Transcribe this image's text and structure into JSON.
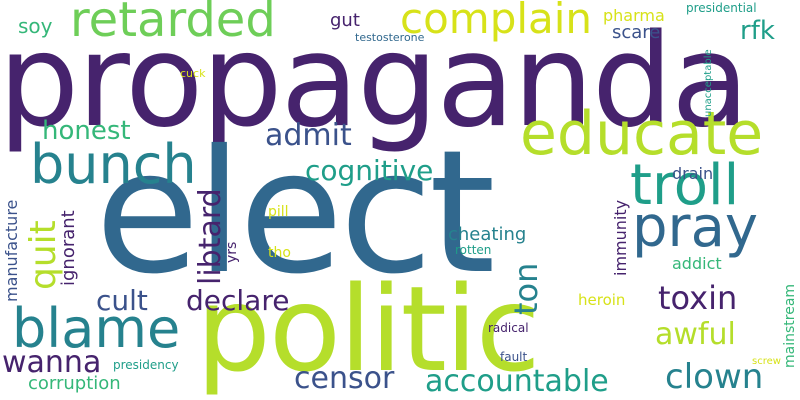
{
  "words": {
    "propaganda": "propaganda",
    "elect": "elect",
    "politic": "politic",
    "retarded": "retarded",
    "complain": "complain",
    "educate": "educate",
    "bunch": "bunch",
    "troll": "troll",
    "pray": "pray",
    "blame": "blame",
    "honest": "honest",
    "admit": "admit",
    "cognitive": "cognitive",
    "quit": "quit",
    "libtard": "libtard",
    "cult": "cult",
    "declare": "declare",
    "toxin": "toxin",
    "wanna": "wanna",
    "censor": "censor",
    "accountable": "accountable",
    "clown": "clown",
    "awful": "awful",
    "corruption": "corruption",
    "rfk": "rfk",
    "ton": "ton",
    "cheating": "cheating",
    "gut": "gut",
    "soy": "soy",
    "testosterone": "testosterone",
    "pharma": "pharma",
    "scare": "scare",
    "presidential": "presidential",
    "unacceptable": "unacceptable",
    "cuck": "cuck",
    "manufacture": "manufacture",
    "ignorant": "ignorant",
    "pill": "pill",
    "tho": "tho",
    "yrs": "yrs",
    "rotten": "rotten",
    "immunity": "immunity",
    "drain": "drain",
    "addict": "addict",
    "heroin": "heroin",
    "mainstream": "mainstream",
    "radical": "radical",
    "fault": "fault",
    "presidency": "presidency",
    "screw": "screw"
  }
}
